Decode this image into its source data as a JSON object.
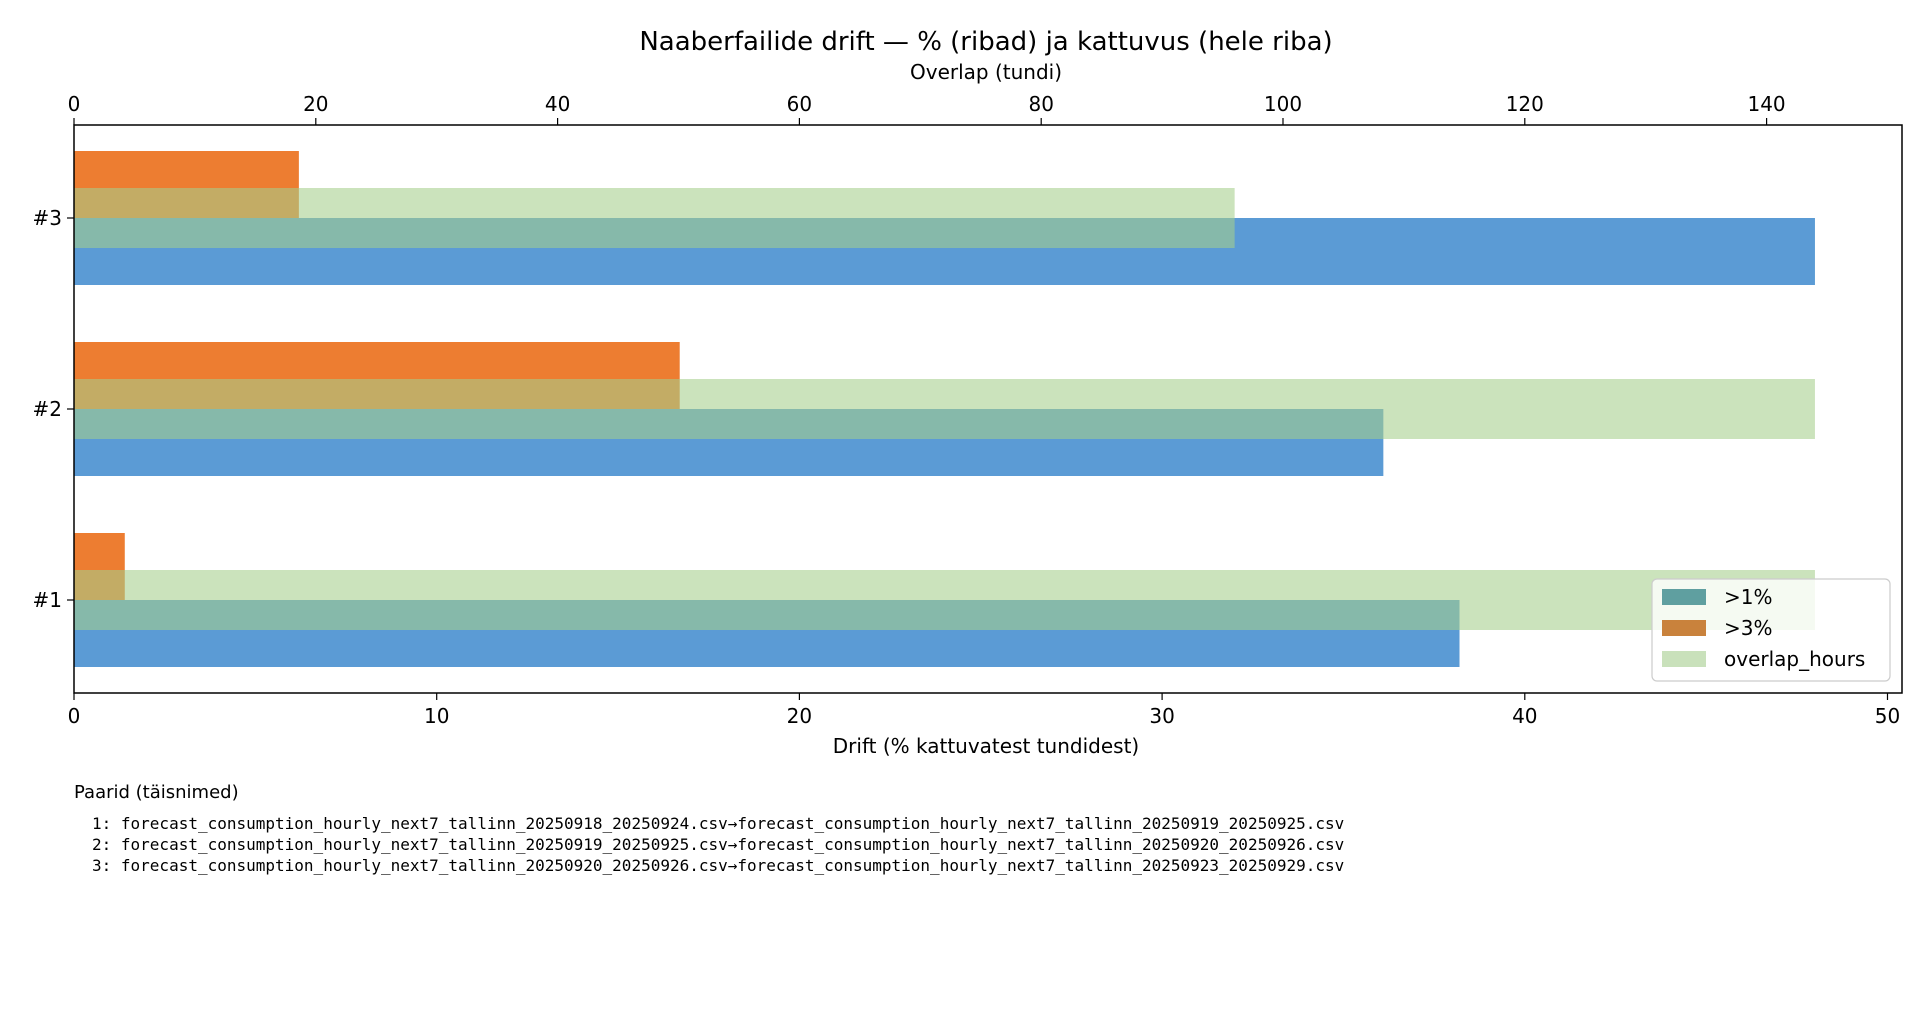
{
  "chart_data": {
    "type": "bar",
    "orientation": "horizontal",
    "title": "Naaberfailide drift — % (ribad) ja kattuvus (hele riba)",
    "xlabel": "Drift (% kattuvatest tundidest)",
    "x2label": "Overlap (tundi)",
    "xlim": [
      0,
      50.4
    ],
    "x2lim": [
      0,
      151.2
    ],
    "xticks": [
      0,
      10,
      20,
      30,
      40,
      50
    ],
    "x2ticks": [
      0,
      20,
      40,
      60,
      80,
      100,
      120,
      140
    ],
    "categories": [
      "#1",
      "#2",
      "#3"
    ],
    "series": [
      {
        "name": "overlap_hours",
        "axis": "top",
        "values": [
          144,
          144,
          96
        ],
        "color": "#c9e1bb"
      },
      {
        "name": ">1%",
        "axis": "bottom",
        "values": [
          38.2,
          36.1,
          48.0
        ],
        "color": "#5b9bd5",
        "legend_color": "#5f9fa0"
      },
      {
        "name": ">3%",
        "axis": "bottom",
        "values": [
          1.4,
          16.7,
          6.2
        ],
        "color": "#ed7d31"
      }
    ],
    "legend": {
      "position": "lower-right",
      "entries": [
        {
          "label": ">1%",
          "color": "#5f9fa0"
        },
        {
          "label": ">3%",
          "color": "#c9823c"
        },
        {
          "label": "overlap_hours",
          "color": "#c9e1bb"
        }
      ]
    },
    "grid": false
  },
  "pairs": {
    "title": "Paarid (täisnimed)",
    "items": [
      "1: forecast_consumption_hourly_next7_tallinn_20250918_20250924.csv→forecast_consumption_hourly_next7_tallinn_20250919_20250925.csv",
      "2: forecast_consumption_hourly_next7_tallinn_20250919_20250925.csv→forecast_consumption_hourly_next7_tallinn_20250920_20250926.csv",
      "3: forecast_consumption_hourly_next7_tallinn_20250920_20250926.csv→forecast_consumption_hourly_next7_tallinn_20250923_20250929.csv"
    ]
  }
}
